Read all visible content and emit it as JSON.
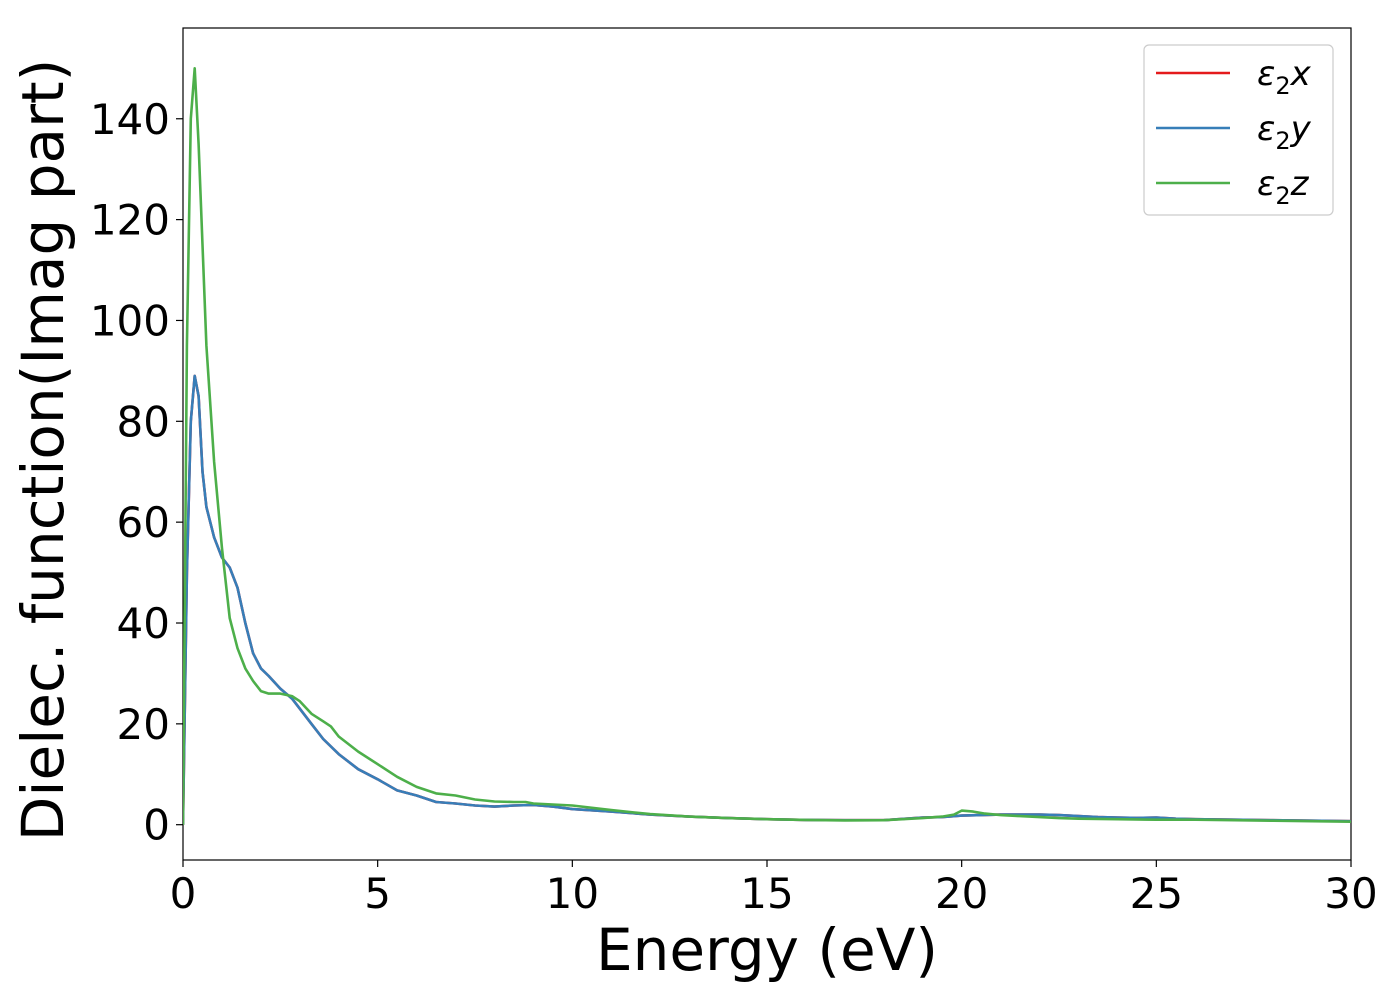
{
  "chart_data": {
    "type": "line",
    "title": "",
    "xlabel": "Energy (eV)",
    "ylabel": "Dielec. function(Imag part)",
    "xlim": [
      0,
      30
    ],
    "ylim": [
      -7,
      158
    ],
    "xticks": [
      0,
      5,
      10,
      15,
      20,
      25,
      30
    ],
    "yticks": [
      0,
      20,
      40,
      60,
      80,
      100,
      120,
      140
    ],
    "grid": false,
    "legend_position": "top-right",
    "series": [
      {
        "name": "ε₂x",
        "legend_base": "ε",
        "legend_sub": "2",
        "legend_tail": "x",
        "color": "#e41a1c",
        "x": [
          0,
          0.1,
          0.2,
          0.3,
          0.4,
          0.5,
          0.6,
          0.8,
          1.0,
          1.2,
          1.4,
          1.6,
          1.8,
          2.0,
          2.2,
          2.5,
          2.8,
          3.0,
          3.3,
          3.6,
          4.0,
          4.5,
          5.0,
          5.5,
          6.0,
          6.5,
          7.0,
          7.5,
          8.0,
          8.5,
          9.0,
          9.5,
          10,
          11,
          12,
          13,
          14,
          15,
          16,
          17,
          18,
          19,
          19.5,
          20,
          20.5,
          21,
          21.5,
          22,
          22.5,
          23,
          23.5,
          24,
          24.5,
          25,
          25.5,
          26,
          27,
          28,
          29,
          30
        ],
        "y": [
          0,
          50,
          80,
          89,
          85,
          70,
          63,
          57,
          53,
          51,
          47,
          40,
          34,
          31,
          29.5,
          27,
          25,
          23,
          20,
          17,
          14,
          11,
          9,
          6.8,
          5.8,
          4.5,
          4.2,
          3.8,
          3.6,
          3.8,
          3.9,
          3.6,
          3.1,
          2.6,
          2.0,
          1.6,
          1.3,
          1.1,
          0.95,
          0.9,
          0.9,
          1.4,
          1.5,
          1.8,
          1.9,
          2.0,
          2.0,
          2.0,
          1.9,
          1.7,
          1.5,
          1.4,
          1.35,
          1.4,
          1.2,
          1.1,
          1.0,
          0.9,
          0.8,
          0.7
        ]
      },
      {
        "name": "ε₂y",
        "legend_base": "ε",
        "legend_sub": "2",
        "legend_tail": "y",
        "color": "#377eb8",
        "x": [
          0,
          0.1,
          0.2,
          0.3,
          0.4,
          0.5,
          0.6,
          0.8,
          1.0,
          1.2,
          1.4,
          1.6,
          1.8,
          2.0,
          2.2,
          2.5,
          2.8,
          3.0,
          3.3,
          3.6,
          4.0,
          4.5,
          5.0,
          5.5,
          6.0,
          6.5,
          7.0,
          7.5,
          8.0,
          8.5,
          9.0,
          9.5,
          10,
          11,
          12,
          13,
          14,
          15,
          16,
          17,
          18,
          19,
          19.5,
          20,
          20.5,
          21,
          21.5,
          22,
          22.5,
          23,
          23.5,
          24,
          24.5,
          25,
          25.5,
          26,
          27,
          28,
          29,
          30
        ],
        "y": [
          0,
          50,
          80,
          89,
          85,
          70,
          63,
          57,
          53,
          51,
          47,
          40,
          34,
          31,
          29.5,
          27,
          25,
          23,
          20,
          17,
          14,
          11,
          9,
          6.8,
          5.8,
          4.5,
          4.2,
          3.8,
          3.6,
          3.8,
          3.9,
          3.6,
          3.1,
          2.6,
          2.0,
          1.6,
          1.3,
          1.1,
          0.95,
          0.9,
          0.9,
          1.4,
          1.5,
          1.8,
          1.9,
          2.0,
          2.0,
          2.0,
          1.9,
          1.7,
          1.5,
          1.4,
          1.35,
          1.4,
          1.2,
          1.1,
          1.0,
          0.9,
          0.8,
          0.7
        ]
      },
      {
        "name": "ε₂z",
        "legend_base": "ε",
        "legend_sub": "2",
        "legend_tail": "z",
        "color": "#4daf4a",
        "x": [
          0,
          0.1,
          0.2,
          0.3,
          0.4,
          0.5,
          0.6,
          0.8,
          1.0,
          1.2,
          1.4,
          1.6,
          1.8,
          2.0,
          2.2,
          2.5,
          2.8,
          3.0,
          3.3,
          3.6,
          3.8,
          4.0,
          4.5,
          5.0,
          5.5,
          6.0,
          6.5,
          7.0,
          7.5,
          8.0,
          8.5,
          8.8,
          9.0,
          9.5,
          10,
          11,
          12,
          13,
          14,
          15,
          16,
          17,
          18,
          19,
          19.5,
          19.8,
          20,
          20.3,
          20.6,
          21,
          21.5,
          22,
          22.5,
          23,
          24,
          25,
          26,
          27,
          28,
          29,
          30
        ],
        "y": [
          0,
          95,
          140,
          150,
          135,
          115,
          95,
          72,
          55,
          41,
          35,
          31,
          28.5,
          26.5,
          26,
          26,
          25.5,
          24.5,
          22,
          20.5,
          19.5,
          17.5,
          14.5,
          12,
          9.5,
          7.5,
          6.2,
          5.8,
          5.0,
          4.6,
          4.5,
          4.5,
          4.2,
          4.0,
          3.8,
          2.9,
          2.1,
          1.6,
          1.3,
          1.1,
          0.95,
          0.85,
          0.9,
          1.3,
          1.6,
          2.0,
          2.8,
          2.6,
          2.2,
          1.9,
          1.7,
          1.5,
          1.3,
          1.2,
          1.1,
          1.0,
          1.0,
          0.9,
          0.8,
          0.7,
          0.6
        ]
      }
    ]
  }
}
